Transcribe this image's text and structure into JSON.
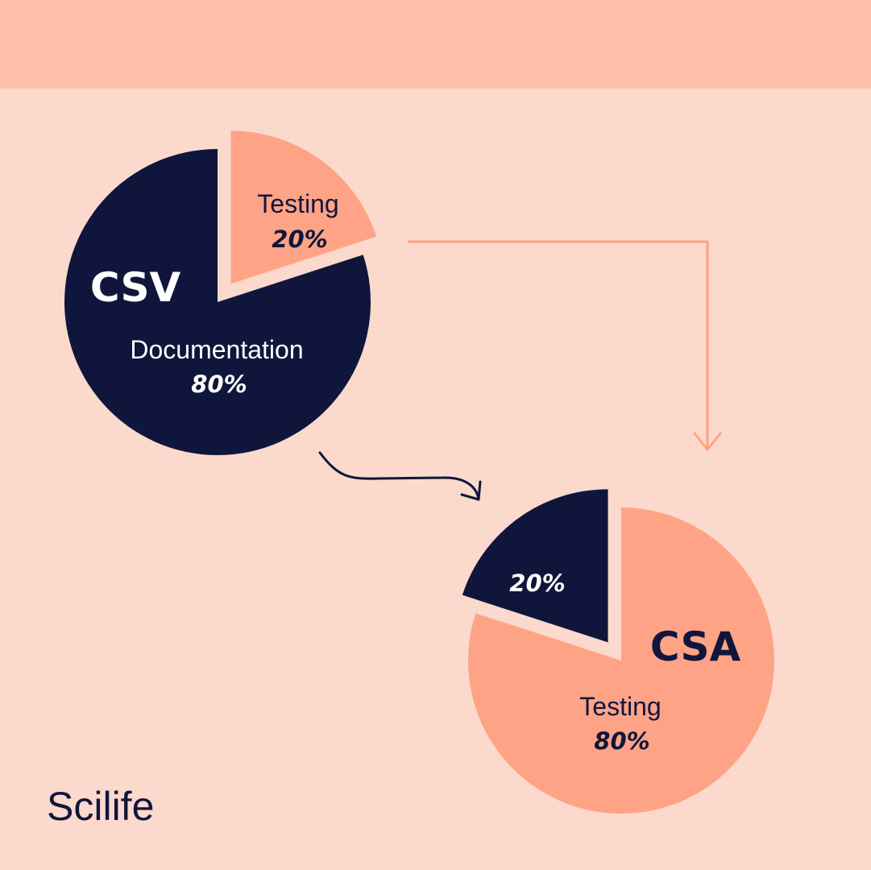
{
  "colors": {
    "background": "#fbd9cc",
    "top_band": "#ffc1ab",
    "navy": "#10163b",
    "salmon": "#ffa386",
    "white": "#ffffff"
  },
  "brand": {
    "name": "Scilife"
  },
  "chart_data": [
    {
      "type": "pie",
      "title": "CSV",
      "slices": [
        {
          "label": "Testing",
          "value": 20,
          "value_label": "20%",
          "color": "#ffa386",
          "exploded": true
        },
        {
          "label": "Documentation",
          "value": 80,
          "value_label": "80%",
          "color": "#10163b",
          "exploded": false
        }
      ]
    },
    {
      "type": "pie",
      "title": "CSA",
      "slices": [
        {
          "label": "",
          "value": 20,
          "value_label": "20%",
          "color": "#10163b",
          "exploded": true
        },
        {
          "label": "Testing",
          "value": 80,
          "value_label": "80%",
          "color": "#ffa386",
          "exploded": false
        }
      ]
    }
  ]
}
